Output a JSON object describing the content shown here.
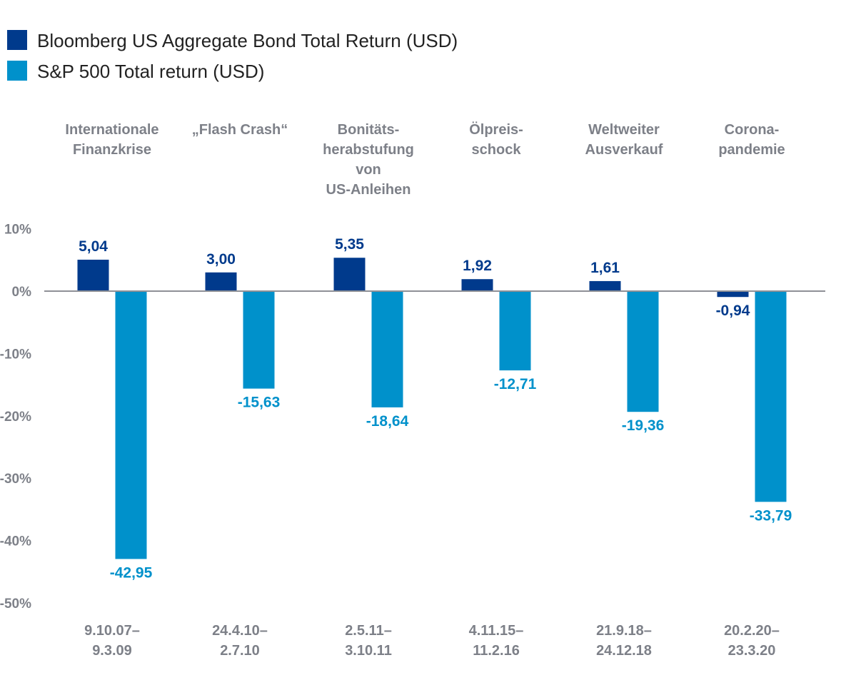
{
  "chart_data": {
    "type": "bar",
    "title": "",
    "xlabel": "",
    "ylabel": "",
    "ylim": [
      -50,
      10
    ],
    "yticks": [
      "10%",
      "0%",
      "-10%",
      "-20%",
      "-30%",
      "-40%",
      "-50%"
    ],
    "yticks_values": [
      10,
      0,
      -10,
      -20,
      -30,
      -40,
      -50
    ],
    "categories": [
      [
        "Internationale",
        "Finanzkrise"
      ],
      [
        "„Flash Crash“"
      ],
      [
        "Bonitäts-",
        "herabstufung",
        "von",
        "US-Anleihen"
      ],
      [
        "Ölpreis-",
        "schock"
      ],
      [
        "Weltweiter",
        "Ausverkauf"
      ],
      [
        "Corona-",
        "pandemie"
      ]
    ],
    "date_ranges": [
      [
        "9.10.07–",
        "9.3.09"
      ],
      [
        "24.4.10–",
        "2.7.10"
      ],
      [
        "2.5.11–",
        "3.10.11"
      ],
      [
        "4.11.15–",
        "11.2.16"
      ],
      [
        "21.9.18–",
        "24.12.18"
      ],
      [
        "20.2.20–",
        "23.3.20"
      ]
    ],
    "series": [
      {
        "name": "Bloomberg US Aggregate Bond Total Return (USD)",
        "color": "#003a8c",
        "values": [
          5.04,
          3.0,
          5.35,
          1.92,
          1.61,
          -0.94
        ],
        "labels": [
          "5,04",
          "3,00",
          "5,35",
          "1,92",
          "1,61",
          "-0,94"
        ]
      },
      {
        "name": "S&P 500 Total return (USD)",
        "color": "#0091cb",
        "values": [
          -42.95,
          -15.63,
          -18.64,
          -12.71,
          -19.36,
          -33.79
        ],
        "labels": [
          "-42,95",
          "-15,63",
          "-18,64",
          "-12,71",
          "-19,36",
          "-33,79"
        ]
      }
    ],
    "legend_position": "top-left",
    "grid": false
  }
}
